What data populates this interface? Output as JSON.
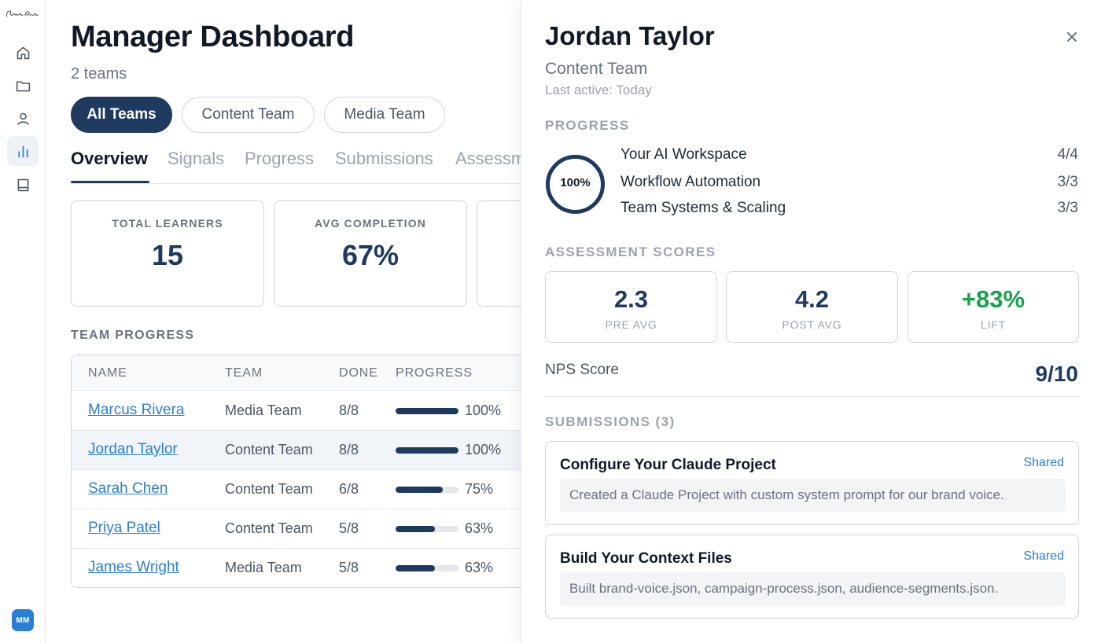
{
  "sidebar": {
    "logo_text": "Claring Point",
    "items": [
      {
        "name": "home",
        "icon": "home-icon"
      },
      {
        "name": "folder",
        "icon": "folder-icon"
      },
      {
        "name": "user",
        "icon": "user-icon"
      },
      {
        "name": "analytics",
        "icon": "bar-chart-icon",
        "active": true
      },
      {
        "name": "book",
        "icon": "book-icon"
      }
    ],
    "avatar_initials": "MM"
  },
  "header": {
    "title": "Manager Dashboard",
    "subtitle": "2 teams"
  },
  "filters": [
    {
      "label": "All Teams",
      "active": true
    },
    {
      "label": "Content Team",
      "active": false
    },
    {
      "label": "Media Team",
      "active": false
    }
  ],
  "tabs": [
    {
      "label": "Overview",
      "active": true
    },
    {
      "label": "Signals"
    },
    {
      "label": "Progress"
    },
    {
      "label": "Submissions"
    },
    {
      "label": "Assessments"
    }
  ],
  "stats": [
    {
      "label": "TOTAL LEARNERS",
      "value": "15"
    },
    {
      "label": "AVG COMPLETION",
      "value": "67%"
    }
  ],
  "team_progress": {
    "label": "TEAM PROGRESS",
    "columns": [
      "NAME",
      "TEAM",
      "DONE",
      "PROGRESS"
    ],
    "rows": [
      {
        "name": "Marcus Rivera",
        "team": "Media Team",
        "done": "8/8",
        "progress": 100,
        "pct": "100%"
      },
      {
        "name": "Jordan Taylor",
        "team": "Content Team",
        "done": "8/8",
        "progress": 100,
        "pct": "100%",
        "selected": true
      },
      {
        "name": "Sarah Chen",
        "team": "Content Team",
        "done": "6/8",
        "progress": 75,
        "pct": "75%"
      },
      {
        "name": "Priya Patel",
        "team": "Content Team",
        "done": "5/8",
        "progress": 63,
        "pct": "63%"
      },
      {
        "name": "James Wright",
        "team": "Media Team",
        "done": "5/8",
        "progress": 63,
        "pct": "63%"
      }
    ]
  },
  "detail": {
    "name": "Jordan Taylor",
    "team": "Content Team",
    "last_active": "Last active: Today",
    "progress_label": "PROGRESS",
    "progress_percent": "100%",
    "progress_value": 100,
    "modules": [
      {
        "name": "Your AI Workspace",
        "score": "4/4"
      },
      {
        "name": "Workflow Automation",
        "score": "3/3"
      },
      {
        "name": "Team Systems & Scaling",
        "score": "3/3"
      }
    ],
    "assessment_label": "ASSESSMENT SCORES",
    "scores": [
      {
        "value": "2.3",
        "label": "PRE AVG"
      },
      {
        "value": "4.2",
        "label": "POST AVG"
      },
      {
        "value": "+83%",
        "label": "LIFT"
      }
    ],
    "nps_label": "NPS Score",
    "nps_value": "9/10",
    "submissions_label": "SUBMISSIONS (3)",
    "submissions": [
      {
        "title": "Configure Your Claude Project",
        "status": "Shared",
        "description": "Created a Claude Project with custom system prompt for our brand voice."
      },
      {
        "title": "Build Your Context Files",
        "status": "Shared",
        "description": "Built brand-voice.json, campaign-process.json, audience-segments.json."
      }
    ]
  },
  "colors": {
    "primary": "#1e3a5f",
    "link": "#2b7fd3",
    "positive": "#16a34a"
  }
}
